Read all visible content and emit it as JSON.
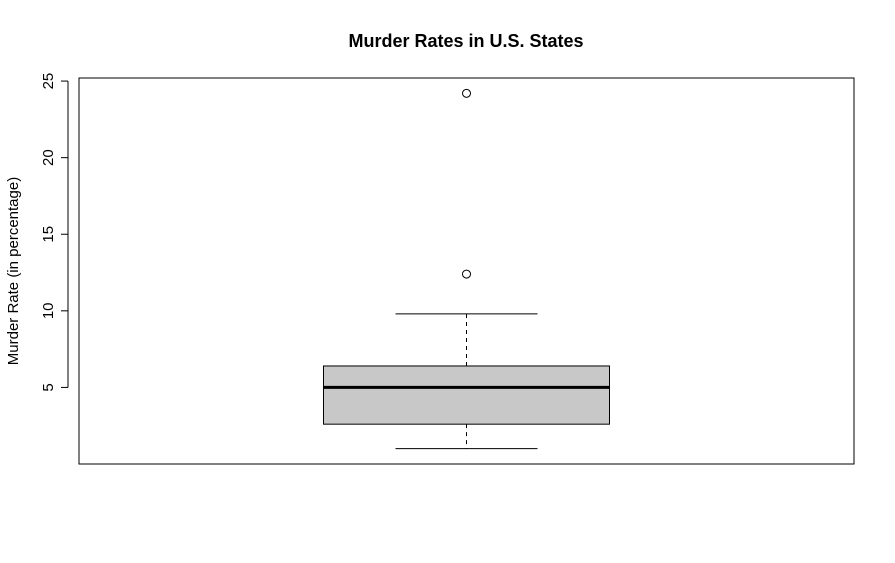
{
  "chart_data": {
    "type": "boxplot",
    "title": "Murder Rates in U.S. States",
    "xlabel": "",
    "ylabel": "Murder Rate (in percentage)",
    "ylim": [
      0.0,
      25.2
    ],
    "yticks": [
      5,
      10,
      15,
      20,
      25
    ],
    "grid": false,
    "legend": "none",
    "box": {
      "min": 1.0,
      "q1": 2.6,
      "median": 5.0,
      "q3": 6.4,
      "max": 9.8,
      "outliers": [
        12.4,
        24.2
      ]
    },
    "colors": {
      "box_fill": "#c8c8c8",
      "stroke": "#000000"
    }
  }
}
